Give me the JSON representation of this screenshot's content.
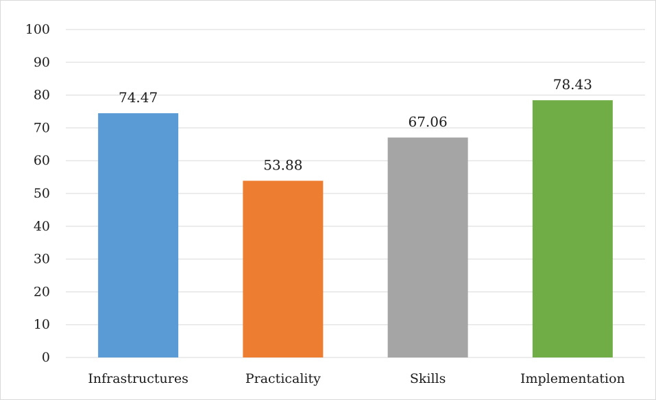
{
  "chart_data": {
    "type": "bar",
    "categories": [
      "Infrastructures",
      "Practicality",
      "Skills",
      "Implementation"
    ],
    "values": [
      74.47,
      53.88,
      67.06,
      78.43
    ],
    "value_labels": [
      "74.47",
      "53.88",
      "67.06",
      "78.43"
    ],
    "colors": [
      "#5b9bd5",
      "#ed7d31",
      "#a5a5a5",
      "#70ad47"
    ],
    "title": "",
    "xlabel": "",
    "ylabel": "",
    "ylim": [
      0,
      100
    ],
    "yticks": [
      "0",
      "10",
      "20",
      "30",
      "40",
      "50",
      "60",
      "70",
      "80",
      "90",
      "100"
    ],
    "grid": true,
    "legend": "none"
  }
}
